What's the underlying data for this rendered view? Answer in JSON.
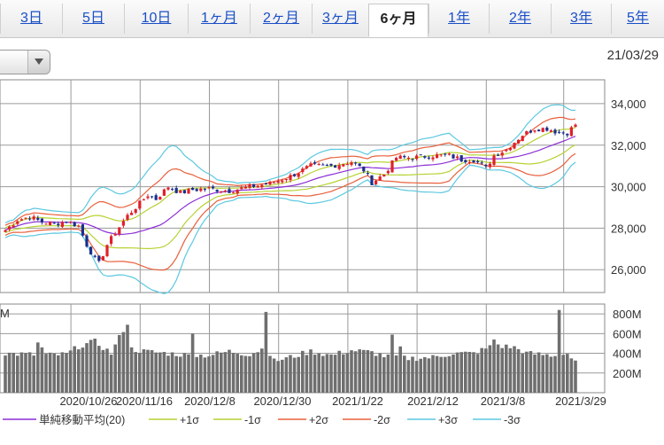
{
  "tabs": [
    {
      "label": "3日",
      "active": false
    },
    {
      "label": "5日",
      "active": false
    },
    {
      "label": "10日",
      "active": false
    },
    {
      "label": "1ヶ月",
      "active": false
    },
    {
      "label": "2ヶ月",
      "active": false
    },
    {
      "label": "3ヶ月",
      "active": false
    },
    {
      "label": "6ヶ月",
      "active": true
    },
    {
      "label": "1年",
      "active": false
    },
    {
      "label": "2年",
      "active": false
    },
    {
      "label": "3年",
      "active": false
    },
    {
      "label": "5年",
      "active": false
    }
  ],
  "dropdown": {
    "icon": "chevron-down-icon"
  },
  "current_date": "21/03/29",
  "chart_data": {
    "type": "candlestick",
    "price_axis": {
      "ticks": [
        "34,000",
        "32,000",
        "30,000",
        "28,000",
        "26,000"
      ],
      "ylim": [
        24900,
        35150
      ]
    },
    "volume_axis": {
      "ticks": [
        "800M",
        "600M",
        "400M",
        "200M"
      ],
      "unit_label": "M",
      "ylim": [
        0,
        900
      ]
    },
    "x_tick_labels": [
      "2020/10/26",
      "2020/11/16",
      "2020/12/8",
      "2020/12/30",
      "2021/1/22",
      "2021/2/12",
      "2021/3/8",
      "2021/3/29"
    ],
    "legend": [
      {
        "label": "単純移動平均(20)",
        "color": "#8b2fd6"
      },
      {
        "label": "+1σ",
        "color": "#b6d232"
      },
      {
        "label": "-1σ",
        "color": "#b6d232"
      },
      {
        "label": "+2σ",
        "color": "#e8603c"
      },
      {
        "label": "-2σ",
        "color": "#e8603c"
      },
      {
        "label": "+3σ",
        "color": "#5cc8e0"
      },
      {
        "label": "-3σ",
        "color": "#5cc8e0"
      }
    ],
    "colors": {
      "up": "#e0202a",
      "down": "#1a2f8c",
      "volume": "#6f6f6f",
      "grid": "#8a8a8a"
    },
    "close_keypoints": [
      [
        0,
        27900
      ],
      [
        3,
        28400
      ],
      [
        6,
        28550
      ],
      [
        9,
        28300
      ],
      [
        12,
        28200
      ],
      [
        15,
        28350
      ],
      [
        18,
        28100
      ],
      [
        20,
        27200
      ],
      [
        22,
        26500
      ],
      [
        23,
        26300
      ],
      [
        25,
        27200
      ],
      [
        27,
        27800
      ],
      [
        30,
        28600
      ],
      [
        32,
        29000
      ],
      [
        35,
        29600
      ],
      [
        37,
        29400
      ],
      [
        40,
        30000
      ],
      [
        43,
        29700
      ],
      [
        46,
        29850
      ],
      [
        50,
        29900
      ],
      [
        55,
        29800
      ],
      [
        60,
        30000
      ],
      [
        65,
        30150
      ],
      [
        70,
        30500
      ],
      [
        75,
        31000
      ],
      [
        80,
        31000
      ],
      [
        85,
        31200
      ],
      [
        88,
        30800
      ],
      [
        90,
        30200
      ],
      [
        93,
        30600
      ],
      [
        96,
        31400
      ],
      [
        100,
        31400
      ],
      [
        105,
        31500
      ],
      [
        109,
        31500
      ],
      [
        112,
        31300
      ],
      [
        115,
        31300
      ],
      [
        118,
        30900
      ],
      [
        120,
        31500
      ],
      [
        123,
        31800
      ],
      [
        127,
        32500
      ],
      [
        130,
        32800
      ],
      [
        133,
        32800
      ],
      [
        136,
        32600
      ],
      [
        138,
        32600
      ],
      [
        140,
        33000
      ]
    ],
    "volume_keypoints": [
      [
        0,
        400
      ],
      [
        10,
        380
      ],
      [
        15,
        390
      ],
      [
        18,
        470
      ],
      [
        22,
        520
      ],
      [
        26,
        400
      ],
      [
        29,
        640
      ],
      [
        30,
        450
      ],
      [
        34,
        420
      ],
      [
        40,
        400
      ],
      [
        45,
        380
      ],
      [
        50,
        380
      ],
      [
        55,
        420
      ],
      [
        60,
        390
      ],
      [
        64,
        460
      ],
      [
        66,
        320
      ],
      [
        70,
        360
      ],
      [
        75,
        420
      ],
      [
        80,
        380
      ],
      [
        85,
        430
      ],
      [
        90,
        410
      ],
      [
        95,
        350
      ],
      [
        100,
        350
      ],
      [
        105,
        360
      ],
      [
        110,
        400
      ],
      [
        115,
        400
      ],
      [
        120,
        480
      ],
      [
        125,
        460
      ],
      [
        128,
        400
      ],
      [
        131,
        390
      ],
      [
        134,
        380
      ],
      [
        136,
        370
      ],
      [
        138,
        400
      ],
      [
        140,
        300
      ]
    ],
    "volume_spikes": [
      [
        8,
        510
      ],
      [
        9,
        460
      ],
      [
        30,
        690
      ],
      [
        46,
        600
      ],
      [
        64,
        820
      ],
      [
        95,
        590
      ],
      [
        97,
        470
      ],
      [
        120,
        540
      ],
      [
        121,
        490
      ],
      [
        136,
        840
      ]
    ]
  }
}
